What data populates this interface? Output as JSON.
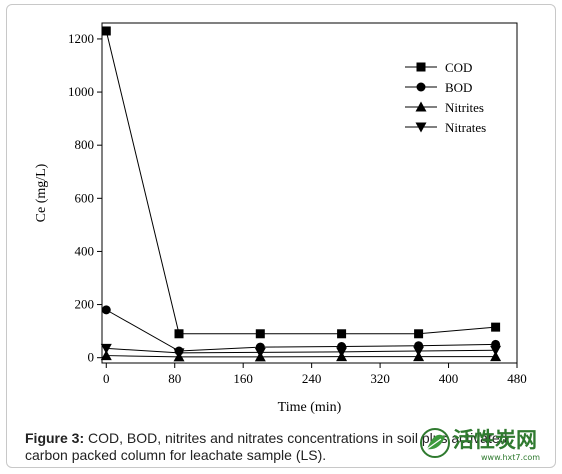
{
  "chart_data": {
    "type": "line",
    "xlabel": "Time (min)",
    "ylabel": "Ce (mg/L)",
    "xlim": [
      -5,
      480
    ],
    "ylim": [
      -20,
      1260
    ],
    "xticks": [
      0,
      80,
      160,
      240,
      320,
      400,
      480
    ],
    "yticks": [
      0,
      200,
      400,
      600,
      800,
      1000,
      1200
    ],
    "x": [
      0,
      85,
      180,
      275,
      365,
      455
    ],
    "legend_position": "top-right",
    "series": [
      {
        "name": "COD",
        "marker": "square",
        "values": [
          1230,
          90,
          90,
          90,
          90,
          115
        ]
      },
      {
        "name": "BOD",
        "marker": "circle",
        "values": [
          180,
          25,
          40,
          42,
          45,
          50
        ]
      },
      {
        "name": "Nitrites",
        "marker": "triangle-up",
        "values": [
          8,
          3,
          3,
          4,
          4,
          4
        ]
      },
      {
        "name": "Nitrates",
        "marker": "triangle-down",
        "values": [
          35,
          18,
          20,
          22,
          25,
          28
        ]
      }
    ]
  },
  "caption": {
    "label": "Figure 3:",
    "text": " COD, BOD, nitrites and nitrates concentrations in soil plus activated carbon packed column for leachate sample (LS)."
  },
  "watermark": {
    "text": "活性炭网",
    "url": "www.hxt7.com"
  }
}
